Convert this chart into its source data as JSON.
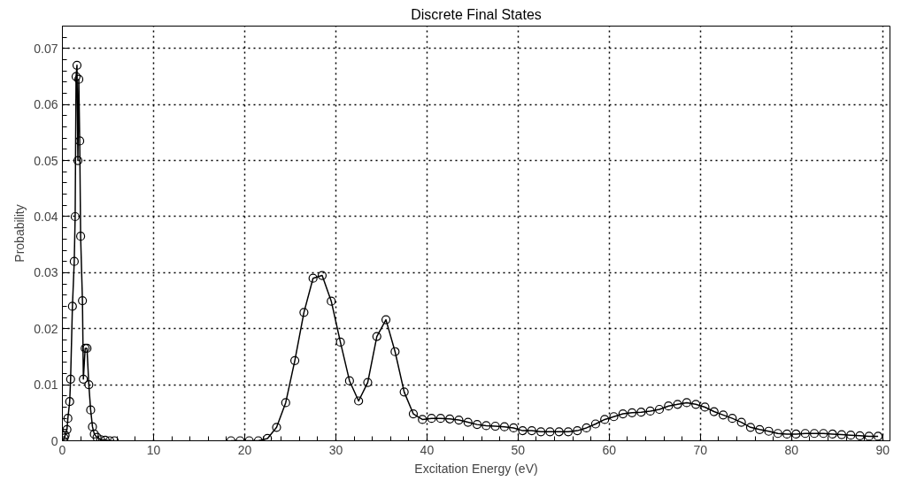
{
  "chart_data": {
    "type": "line",
    "title": "Discrete Final States",
    "xlabel": "Excitation Energy (eV)",
    "ylabel": "Probability",
    "xlim": [
      0,
      90.8
    ],
    "ylim": [
      0,
      0.074
    ],
    "xticks": [
      0,
      10,
      20,
      30,
      40,
      50,
      60,
      70,
      80,
      90
    ],
    "yticks": [
      0,
      0.01,
      0.02,
      0.03,
      0.04,
      0.05,
      0.06,
      0.07
    ],
    "grid": true,
    "marker": "circle",
    "line_style": "solid",
    "series": [
      {
        "color": "#000000",
        "x": [
          0.1,
          0.2,
          0.3,
          0.5,
          0.6,
          0.8,
          0.9,
          1.1,
          1.3,
          1.4,
          1.5,
          1.6,
          1.7,
          1.8,
          1.9,
          2.0,
          2.2,
          2.3,
          2.5,
          2.7,
          2.9,
          3.1,
          3.3,
          3.5,
          3.8,
          4.2,
          4.7,
          5.2,
          5.7,
          12,
          18.5,
          19.5,
          20.5,
          21.5,
          22.5,
          23.5,
          24.5,
          25.5,
          26.5,
          27.5,
          28.5,
          29.5,
          30.5,
          31.5,
          32.5,
          33.5,
          34.5,
          35.5,
          36.5,
          37.5,
          38.5,
          39.5,
          40.5,
          41.5,
          42.5,
          43.5,
          44.5,
          45.5,
          46.5,
          47.5,
          48.5,
          49.5,
          50.5,
          51.5,
          52.5,
          53.5,
          54.5,
          55.5,
          56.5,
          57.5,
          58.5,
          59.5,
          60.5,
          61.5,
          62.5,
          63.5,
          64.5,
          65.5,
          66.5,
          67.5,
          68.5,
          69.5,
          70.5,
          71.5,
          72.5,
          73.5,
          74.5,
          75.5,
          76.5,
          77.5,
          78.5,
          79.5,
          80.5,
          81.5,
          82.5,
          83.5,
          84.5,
          85.5,
          86.5,
          87.5,
          88.5,
          89.5
        ],
        "values": [
          0,
          0.0005,
          0.001,
          0.002,
          0.004,
          0.007,
          0.011,
          0.024,
          0.032,
          0.04,
          0.065,
          0.067,
          0.05,
          0.0645,
          0.0535,
          0.0365,
          0.025,
          0.011,
          0.0165,
          0.0165,
          0.01,
          0.0055,
          0.0025,
          0.0012,
          0.0006,
          0.0002,
          0.0001,
          0,
          0,
          null,
          0,
          0,
          0,
          0,
          0.0004,
          0.0024,
          0.0068,
          0.0143,
          0.0229,
          0.029,
          0.0295,
          0.0249,
          0.0176,
          0.0107,
          0.0071,
          0.0104,
          0.0186,
          0.0216,
          0.0159,
          0.0087,
          0.0048,
          0.0038,
          0.004,
          0.004,
          0.0039,
          0.0037,
          0.0033,
          0.0029,
          0.0027,
          0.0026,
          0.0025,
          0.0023,
          0.0018,
          0.0018,
          0.0016,
          0.0016,
          0.0016,
          0.0016,
          0.0018,
          0.0023,
          0.003,
          0.0038,
          0.0043,
          0.0048,
          0.005,
          0.0051,
          0.0053,
          0.0056,
          0.0062,
          0.0065,
          0.0068,
          0.0065,
          0.006,
          0.0052,
          0.0046,
          0.004,
          0.0033,
          0.0024,
          0.002,
          0.0017,
          0.0013,
          0.0012,
          0.0012,
          0.0013,
          0.0013,
          0.0013,
          0.0012,
          0.0011,
          0.001,
          0.0009,
          0.0008,
          0.0008
        ]
      }
    ]
  }
}
